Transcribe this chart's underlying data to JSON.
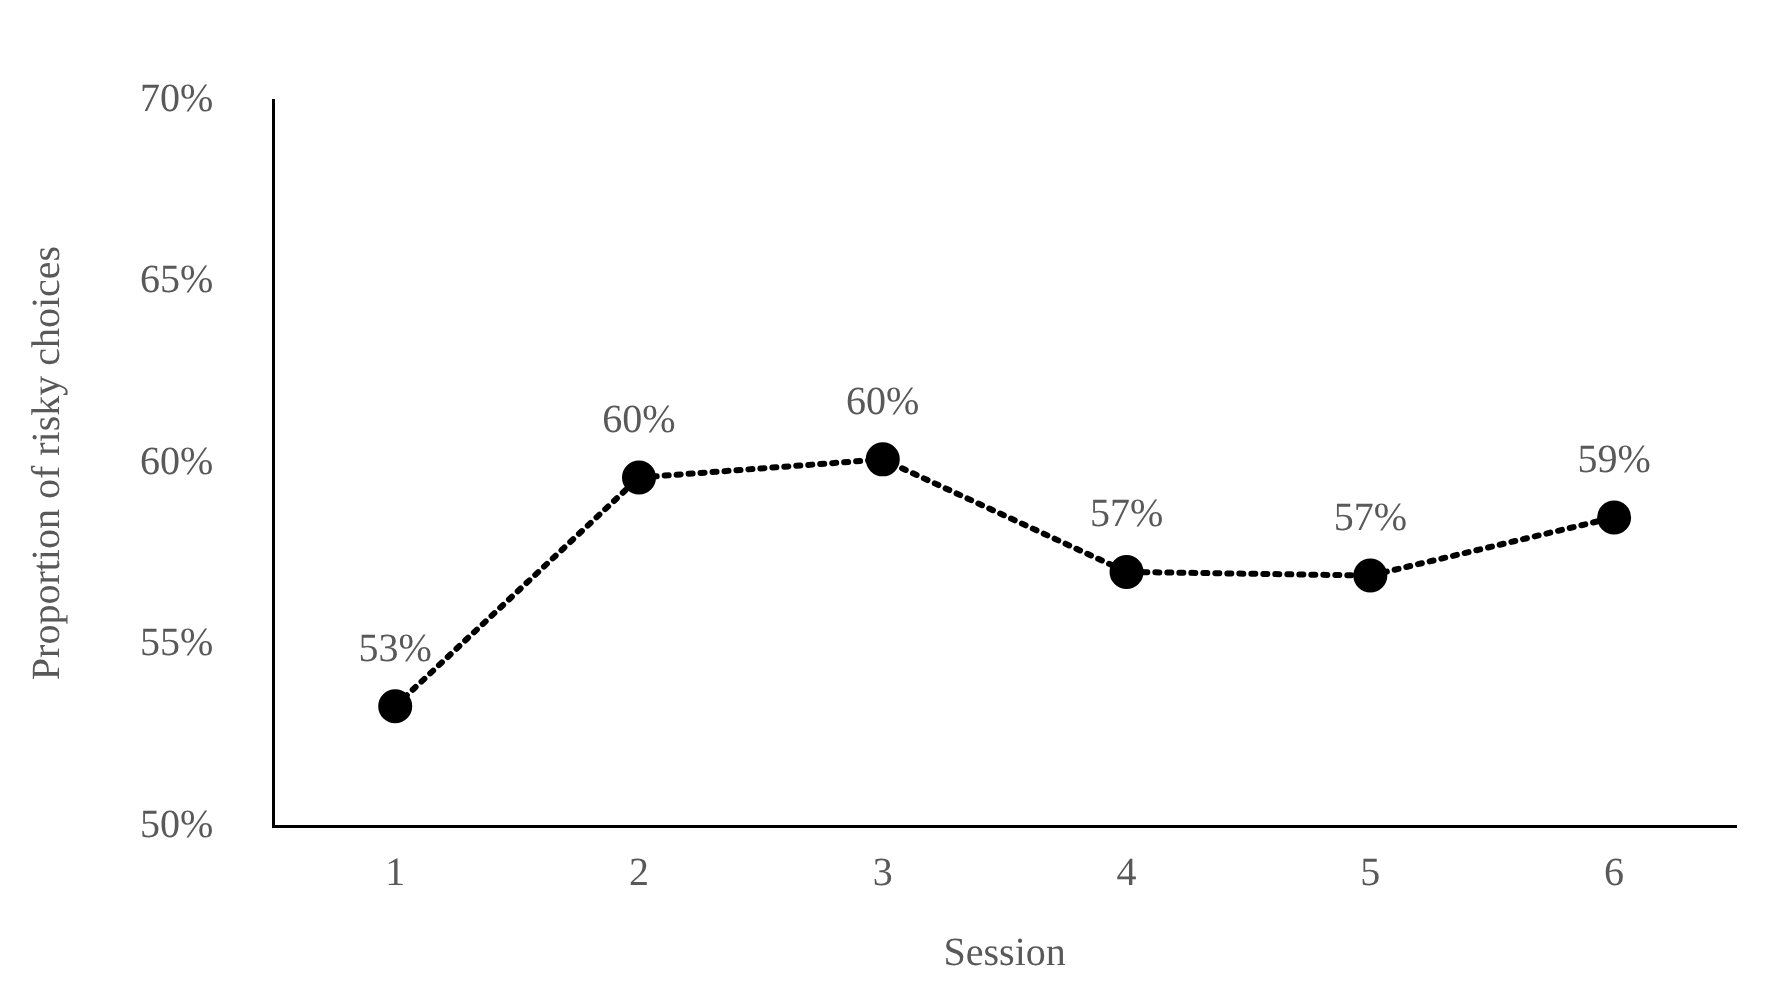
{
  "chart_data": {
    "type": "line",
    "xlabel": "Session",
    "ylabel": "Proportion of risky choices",
    "categories": [
      "1",
      "2",
      "3",
      "4",
      "5",
      "6"
    ],
    "values": [
      53.3,
      59.6,
      60.1,
      57.0,
      56.9,
      58.5
    ],
    "value_labels": [
      "53%",
      "60%",
      "60%",
      "57%",
      "57%",
      "59%"
    ],
    "color": "#000000",
    "marker": "circle",
    "line_style": "dotted",
    "grid": false,
    "ylim": [
      50,
      70
    ],
    "yticks": [
      {
        "value": 50,
        "label": "50%"
      },
      {
        "value": 55,
        "label": "55%"
      },
      {
        "value": 60,
        "label": "60%"
      },
      {
        "value": 65,
        "label": "65%"
      },
      {
        "value": 70,
        "label": "70%"
      }
    ]
  }
}
